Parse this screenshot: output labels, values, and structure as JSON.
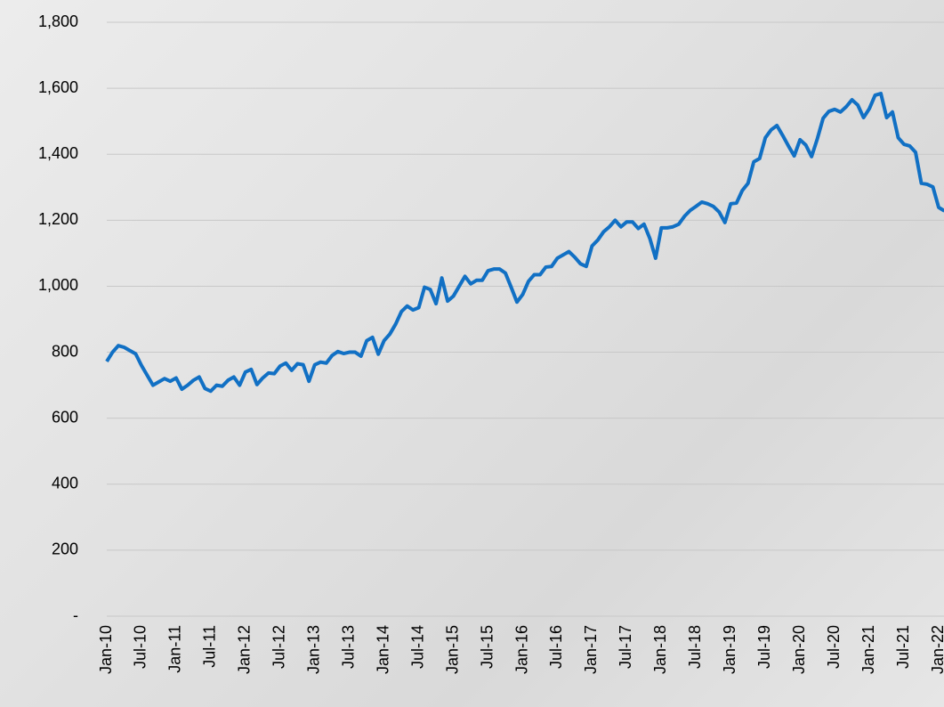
{
  "chart_data": {
    "type": "line",
    "categories": [
      "Jan-10",
      null,
      null,
      null,
      null,
      null,
      "Jul-10",
      null,
      null,
      null,
      null,
      null,
      "Jan-11",
      null,
      null,
      null,
      null,
      null,
      "Jul-11",
      null,
      null,
      null,
      null,
      null,
      "Jan-12",
      null,
      null,
      null,
      null,
      null,
      "Jul-12",
      null,
      null,
      null,
      null,
      null,
      "Jan-13",
      null,
      null,
      null,
      null,
      null,
      "Jul-13",
      null,
      null,
      null,
      null,
      null,
      "Jan-14",
      null,
      null,
      null,
      null,
      null,
      "Jul-14",
      null,
      null,
      null,
      null,
      null,
      "Jan-15",
      null,
      null,
      null,
      null,
      null,
      "Jul-15",
      null,
      null,
      null,
      null,
      null,
      "Jan-16",
      null,
      null,
      null,
      null,
      null,
      "Jul-16",
      null,
      null,
      null,
      null,
      null,
      "Jan-17",
      null,
      null,
      null,
      null,
      null,
      "Jul-17",
      null,
      null,
      null,
      null,
      null,
      "Jan-18",
      null,
      null,
      null,
      null,
      null,
      "Jul-18",
      null,
      null,
      null,
      null,
      null,
      "Jan-19",
      null,
      null,
      null,
      null,
      null,
      "Jul-19",
      null,
      null,
      null,
      null,
      null,
      "Jan-20",
      null,
      null,
      null,
      null,
      null,
      "Jul-20",
      null,
      null,
      null,
      null,
      null,
      "Jan-21",
      null,
      null,
      null,
      null,
      null,
      "Jul-21",
      null,
      null,
      null,
      null,
      null,
      "Jan-22",
      null
    ],
    "series": [
      {
        "color": "#1170c4",
        "values": [
          772,
          800,
          820,
          815,
          805,
          795,
          760,
          730,
          700,
          710,
          720,
          712,
          722,
          688,
          700,
          715,
          725,
          690,
          682,
          700,
          697,
          715,
          725,
          700,
          740,
          748,
          702,
          722,
          737,
          735,
          758,
          767,
          745,
          765,
          762,
          712,
          762,
          770,
          767,
          790,
          802,
          796,
          800,
          800,
          788,
          835,
          845,
          794,
          835,
          855,
          885,
          923,
          940,
          928,
          935,
          997,
          990,
          947,
          1025,
          955,
          970,
          1000,
          1030,
          1007,
          1018,
          1018,
          1047,
          1052,
          1052,
          1040,
          997,
          952,
          975,
          1015,
          1035,
          1035,
          1058,
          1060,
          1085,
          1095,
          1105,
          1088,
          1068,
          1060,
          1122,
          1140,
          1165,
          1180,
          1200,
          1180,
          1195,
          1195,
          1175,
          1188,
          1145,
          1085,
          1177,
          1177,
          1180,
          1188,
          1212,
          1230,
          1242,
          1255,
          1250,
          1242,
          1225,
          1193,
          1250,
          1252,
          1290,
          1312,
          1377,
          1387,
          1450,
          1474,
          1487,
          1457,
          1425,
          1395,
          1444,
          1428,
          1393,
          1447,
          1509,
          1530,
          1536,
          1528,
          1544,
          1565,
          1549,
          1511,
          1538,
          1579,
          1584,
          1511,
          1528,
          1450,
          1430,
          1425,
          1406,
          1312,
          1309,
          1301,
          1239,
          1228
        ]
      }
    ],
    "ylim": [
      0,
      1800
    ],
    "yticks": [
      {
        "value": 0,
        "label": "-"
      },
      200,
      400,
      600,
      800,
      {
        "value": 1000,
        "label": "1,000"
      },
      {
        "value": 1200,
        "label": "1,200"
      },
      {
        "value": 1400,
        "label": "1,400"
      },
      {
        "value": 1600,
        "label": "1,600"
      },
      {
        "value": 1800,
        "label": "1,800"
      }
    ],
    "grid": true
  }
}
